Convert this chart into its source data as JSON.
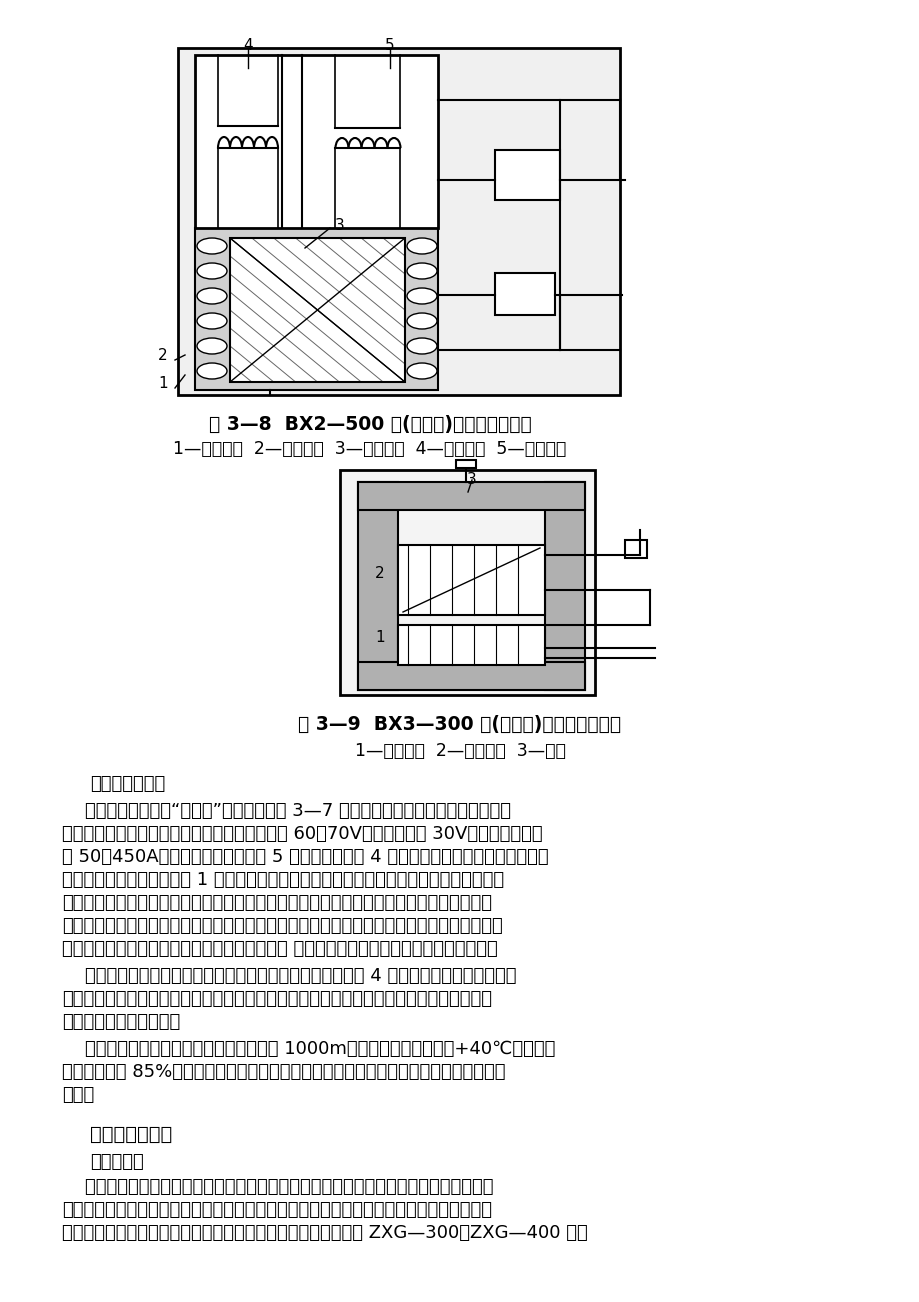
{
  "bg_color": "#ffffff",
  "fig_caption1": "图 3—8  BX2—500 型(同体式)焊机结构示意图",
  "fig_caption1_sub": "1—固定铁心  2—初级绕组  3—次级绕组  4—电抗线圈  5—活动铁心",
  "fig_caption2": "图 3—9  BX3—300 型(动圈式)焊机结构示意图",
  "fig_caption2_sub": "1—初级线圈  2—次级线圈  3—铁心",
  "section_title1": "（二）工作原理",
  "section_title2": "二、直流弧焊机",
  "section_title2b": "（一）结构",
  "para1_lines": [
    "    目前应用最广泛的“动铁式”交流焊机如图 3—7 所示。它是一个结构特殊的降压变压",
    "器，属于动铁芯漏磁式类型。焊机的空载电压为 60～70V。工作电压为 30V，电流调节范围",
    "为 50～450A。铁芯由两侧的静铁芯 5 和中间的动铁芯 4 组成，变压器的次级绕组分成两部",
    "分，一部分紧绕在初级绕组 1 的外部，另一部分绕在铁芯的另一侧。前一部分起建立电压的",
    "作用，后一部分相当于电感线圈。焊接时，电感线圈的感抗电压降使电焊机获得较低的工作",
    "电压，这是电焊机具有陡降外特性的原因。引弧时，电焊机能供给较高的电压和较小的电流，",
    "当电弧稳定燃烧时，电流增大，而电压急剧降低 当焊条与工件短路时，也限制了短路电流。"
  ],
  "para2_lines": [
    "    焊接电流调节分为粗调、细调两档。电流的细调靠移动铁芯 4 改变变压器的漏磁来实现。",
    "向外移动铁芯，磁阔增大，漏磁减小，则电流增大，反之，则电流减少。电流的粗调靠改变",
    "次级绕组的匹数来实现。"
  ],
  "para3_lines": [
    "    该电弧焊机的工作条件为应在海拔不超过 1000m，周围空气温度不超过+40℃、空气相",
    "对湿度不超过 85%等条件下使用，不应在有害工业气体、水蘵汽、易燃、多灰尘的场合下",
    "工作。"
  ],
  "para4_lines": [
    "    由于整流或直流弧焊机与直流弧焊发电机比较，因没有机械旋转部分，具有噪音小，空",
    "载损耗小、效率高、成本低和制造维护简单等优点。因此，有取代直流弧焊发电机的趋势，",
    "在这里只介绍整流式直流弧焊机。整流式直流弧焊机常用型号如 ZXG—300、ZXG—400 等。"
  ],
  "font_size_body": 13.0,
  "font_size_caption_bold": 13.5,
  "font_size_sub": 12.5,
  "font_size_section": 14.0
}
